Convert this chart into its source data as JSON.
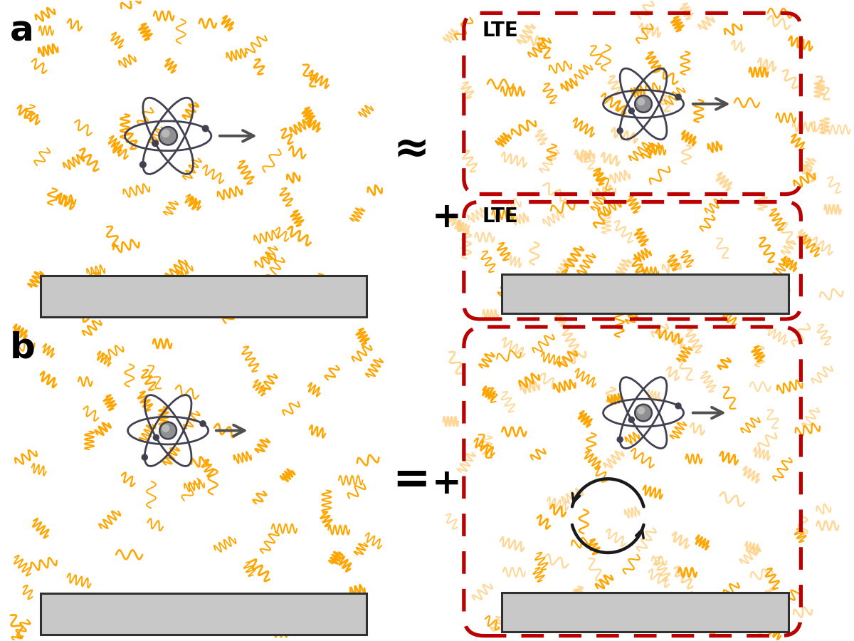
{
  "bg_color": "#ffffff",
  "orange_color": "#FFA500",
  "orange_faded": "#FFD085",
  "dark_gray": "#404040",
  "red_dashed": "#BB0000",
  "panel_a_label": "a",
  "panel_b_label": "b",
  "approx_symbol": "≈",
  "equals_symbol": "=",
  "plus_symbol": "+",
  "lte_label": "LTE",
  "atom_color": "#404050",
  "nucleus_color": "#909090",
  "rect_fill": "#C8C8C8",
  "rect_edge": "#303030"
}
